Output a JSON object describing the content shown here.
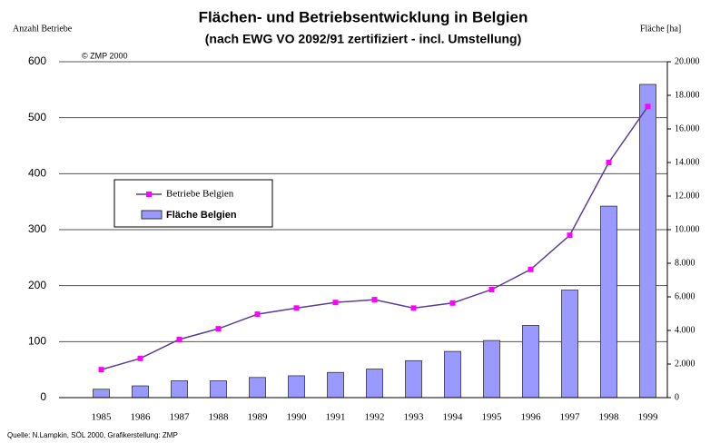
{
  "chart_data": {
    "type": "bar-line",
    "title": "Flächen- und Betriebsentwicklung in Belgien",
    "subtitle": "(nach EWG VO 2092/91 zertifiziert - incl. Umstellung)",
    "y_label": "Anzahl Betriebe",
    "y2_label": "Fläche [ha]",
    "annotation": "© ZMP 2000",
    "source": "Quelle: N.Lampkin, SÖL 2000, Grafikerstellung: ZMP",
    "categories": [
      "1985",
      "1986",
      "1987",
      "1988",
      "1989",
      "1990",
      "1991",
      "1992",
      "1993",
      "1994",
      "1995",
      "1996",
      "1997",
      "1998",
      "1999"
    ],
    "series": [
      {
        "name": "Betriebe Belgien",
        "type": "line",
        "color": "#5a3c9a",
        "marker_color": "#ff00ff",
        "values": [
          50,
          70,
          104,
          123,
          149,
          160,
          170,
          175,
          160,
          169,
          193,
          229,
          290,
          420,
          520
        ]
      },
      {
        "name": "Fläche Belgien",
        "type": "bar",
        "axis": "y2",
        "color": "#9999ff",
        "values": [
          500,
          700,
          1000,
          1000,
          1200,
          1300,
          1500,
          1700,
          2200,
          2750,
          3400,
          4300,
          6400,
          11400,
          18650
        ]
      }
    ],
    "ylim": [
      0,
      600
    ],
    "yticks": [
      0,
      100,
      200,
      300,
      400,
      500,
      600
    ],
    "y2lim": [
      0,
      20000
    ],
    "y2ticks": [
      0,
      {
        "value": 2000,
        "label": "2.000"
      },
      {
        "value": 4000,
        "label": "4.000"
      },
      {
        "value": 6000,
        "label": "6.000"
      },
      {
        "value": 8000,
        "label": "8.000"
      },
      {
        "value": 10000,
        "label": "10.000"
      },
      {
        "value": 12000,
        "label": "12.000"
      },
      {
        "value": 14000,
        "label": "14.000"
      },
      {
        "value": 16000,
        "label": "16.000"
      },
      {
        "value": 18000,
        "label": "18.000"
      },
      {
        "value": 20000,
        "label": "20.000"
      }
    ],
    "grid": true
  }
}
